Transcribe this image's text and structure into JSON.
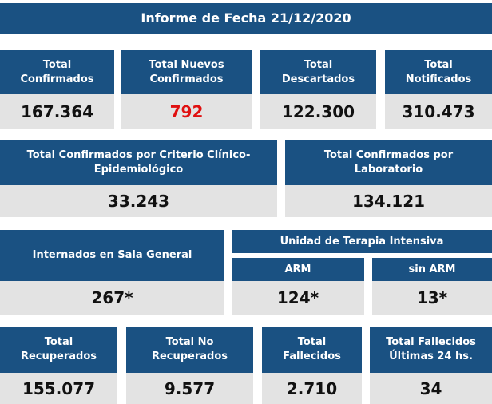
{
  "title": "Informe de Fecha 21/12/2020",
  "row1": [
    {
      "label": "Total\nConfirmados",
      "value": "167.364"
    },
    {
      "label": "Total Nuevos\nConfirmados",
      "value": "792"
    },
    {
      "label": "Total\nDescartados",
      "value": "122.300"
    },
    {
      "label": "Total\nNotificados",
      "value": "310.473"
    }
  ],
  "row2": [
    {
      "label": "Total Confirmados por Criterio Clínico-\nEpidemiológico",
      "value": "33.243"
    },
    {
      "label": "Total Confirmados por\nLaboratorio",
      "value": "134.121"
    }
  ],
  "row3": {
    "sala_label": "Internados en Sala General",
    "sala_value": "267*",
    "uti_label": "Unidad de Terapia Intensiva",
    "arm_label": "ARM",
    "arm_value": "124*",
    "sinarm_label": "sin ARM",
    "sinarm_value": "13*"
  },
  "row4": [
    {
      "label": "Total\nRecuperados",
      "value": "155.077"
    },
    {
      "label": "Total No\nRecuperados",
      "value": "9.577"
    },
    {
      "label": "Total\nFallecidos",
      "value": "2.710"
    },
    {
      "label": "Total Fallecidos\nÚltimas 24 hs.",
      "value": "34"
    }
  ],
  "colors": {
    "header_bg": "#1a5182",
    "value_bg": "#e3e3e3",
    "highlight": "#e01010"
  }
}
